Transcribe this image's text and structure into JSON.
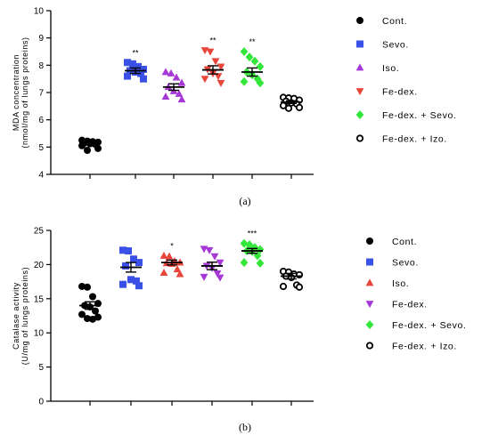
{
  "chart_data": [
    {
      "type": "scatter",
      "panel_label": "(a)",
      "ylabel_line1": "MDA concentration",
      "ylabel_line2": "(nmol/mg of lungs proteins)",
      "ylim": [
        4,
        10
      ],
      "yticks": [
        4,
        5,
        6,
        7,
        8,
        9,
        10
      ],
      "grid": false,
      "legend_position": "right",
      "groups": [
        {
          "name": "Cont.",
          "marker": "circle",
          "color": "#000000",
          "mean": 5.15,
          "sem": 0.06,
          "sig": "",
          "points": [
            5.25,
            5.22,
            5.2,
            5.18,
            5.15,
            5.12,
            5.1,
            5.05,
            4.95,
            4.88
          ]
        },
        {
          "name": "Sevo.",
          "marker": "square",
          "color": "#3a50e6",
          "mean": 7.8,
          "sem": 0.1,
          "sig": "**",
          "points": [
            8.1,
            8.05,
            7.95,
            7.85,
            7.8,
            7.75,
            7.7,
            7.6,
            7.5
          ]
        },
        {
          "name": "Iso.",
          "marker": "triangle-up",
          "color": "#a638d6",
          "mean": 7.2,
          "sem": 0.12,
          "sig": "",
          "points": [
            7.75,
            7.7,
            7.55,
            7.35,
            7.2,
            7.05,
            6.95,
            6.85,
            6.75
          ]
        },
        {
          "name": "Fe-dex.",
          "marker": "triangle-down",
          "color": "#e8453b",
          "mean": 7.83,
          "sem": 0.15,
          "sig": "**",
          "points": [
            8.55,
            8.5,
            8.15,
            7.95,
            7.85,
            7.7,
            7.6,
            7.5,
            7.35
          ]
        },
        {
          "name": "Fe-dex. + Sevo.",
          "marker": "diamond",
          "color": "#33e63a",
          "mean": 7.75,
          "sem": 0.15,
          "sig": "**",
          "points": [
            8.5,
            8.3,
            8.15,
            7.95,
            7.75,
            7.65,
            7.5,
            7.4,
            7.35
          ]
        },
        {
          "name": "Fe-dex. + Izo.",
          "marker": "circle-open",
          "color": "#000000",
          "mean": 6.65,
          "sem": 0.05,
          "sig": "",
          "points": [
            6.82,
            6.8,
            6.78,
            6.72,
            6.68,
            6.62,
            6.58,
            6.52,
            6.45,
            6.42
          ]
        }
      ]
    },
    {
      "type": "scatter",
      "panel_label": "(b)",
      "ylabel_line1": "Catalase activity",
      "ylabel_line2": "(U/mg of lungs proteins)",
      "ylim": [
        0,
        25
      ],
      "yticks": [
        0,
        5,
        10,
        15,
        20,
        25
      ],
      "grid": false,
      "legend_position": "right",
      "groups": [
        {
          "name": "Cont.",
          "marker": "circle",
          "color": "#000000",
          "mean": 14.0,
          "sem": 0.55,
          "sig": "",
          "points": [
            16.8,
            16.7,
            15.3,
            14.3,
            14.0,
            13.8,
            13.2,
            12.7,
            12.3,
            12.1,
            12.0
          ]
        },
        {
          "name": "Sevo.",
          "marker": "square",
          "color": "#3a50e6",
          "mean": 19.6,
          "sem": 0.7,
          "sig": "",
          "points": [
            22.1,
            22.0,
            20.8,
            20.3,
            19.8,
            17.8,
            17.6,
            17.1,
            16.9
          ]
        },
        {
          "name": "Iso.",
          "marker": "triangle-up",
          "color": "#e8453b",
          "mean": 20.3,
          "sem": 0.35,
          "sig": "*",
          "points": [
            21.3,
            21.2,
            20.5,
            20.3,
            20.2,
            20.1,
            19.3,
            18.8,
            18.6
          ]
        },
        {
          "name": "Fe-dex.",
          "marker": "triangle-down",
          "color": "#a638d6",
          "mean": 19.8,
          "sem": 0.55,
          "sig": "",
          "points": [
            22.3,
            22.1,
            21.2,
            20.3,
            19.8,
            19.5,
            18.7,
            18.2,
            18.1
          ]
        },
        {
          "name": "Fe-dex. + Sevo.",
          "marker": "diamond",
          "color": "#33e63a",
          "mean": 22.0,
          "sem": 0.35,
          "sig": "***",
          "points": [
            23.1,
            22.9,
            22.5,
            22.2,
            22.0,
            21.9,
            21.3,
            20.3,
            20.2
          ]
        },
        {
          "name": "Fe-dex. + Izo.",
          "marker": "circle-open",
          "color": "#000000",
          "mean": 18.3,
          "sem": 0.4,
          "sig": "",
          "points": [
            19.0,
            18.9,
            18.6,
            18.5,
            18.3,
            18.1,
            17.0,
            16.8,
            16.7
          ]
        }
      ]
    }
  ]
}
